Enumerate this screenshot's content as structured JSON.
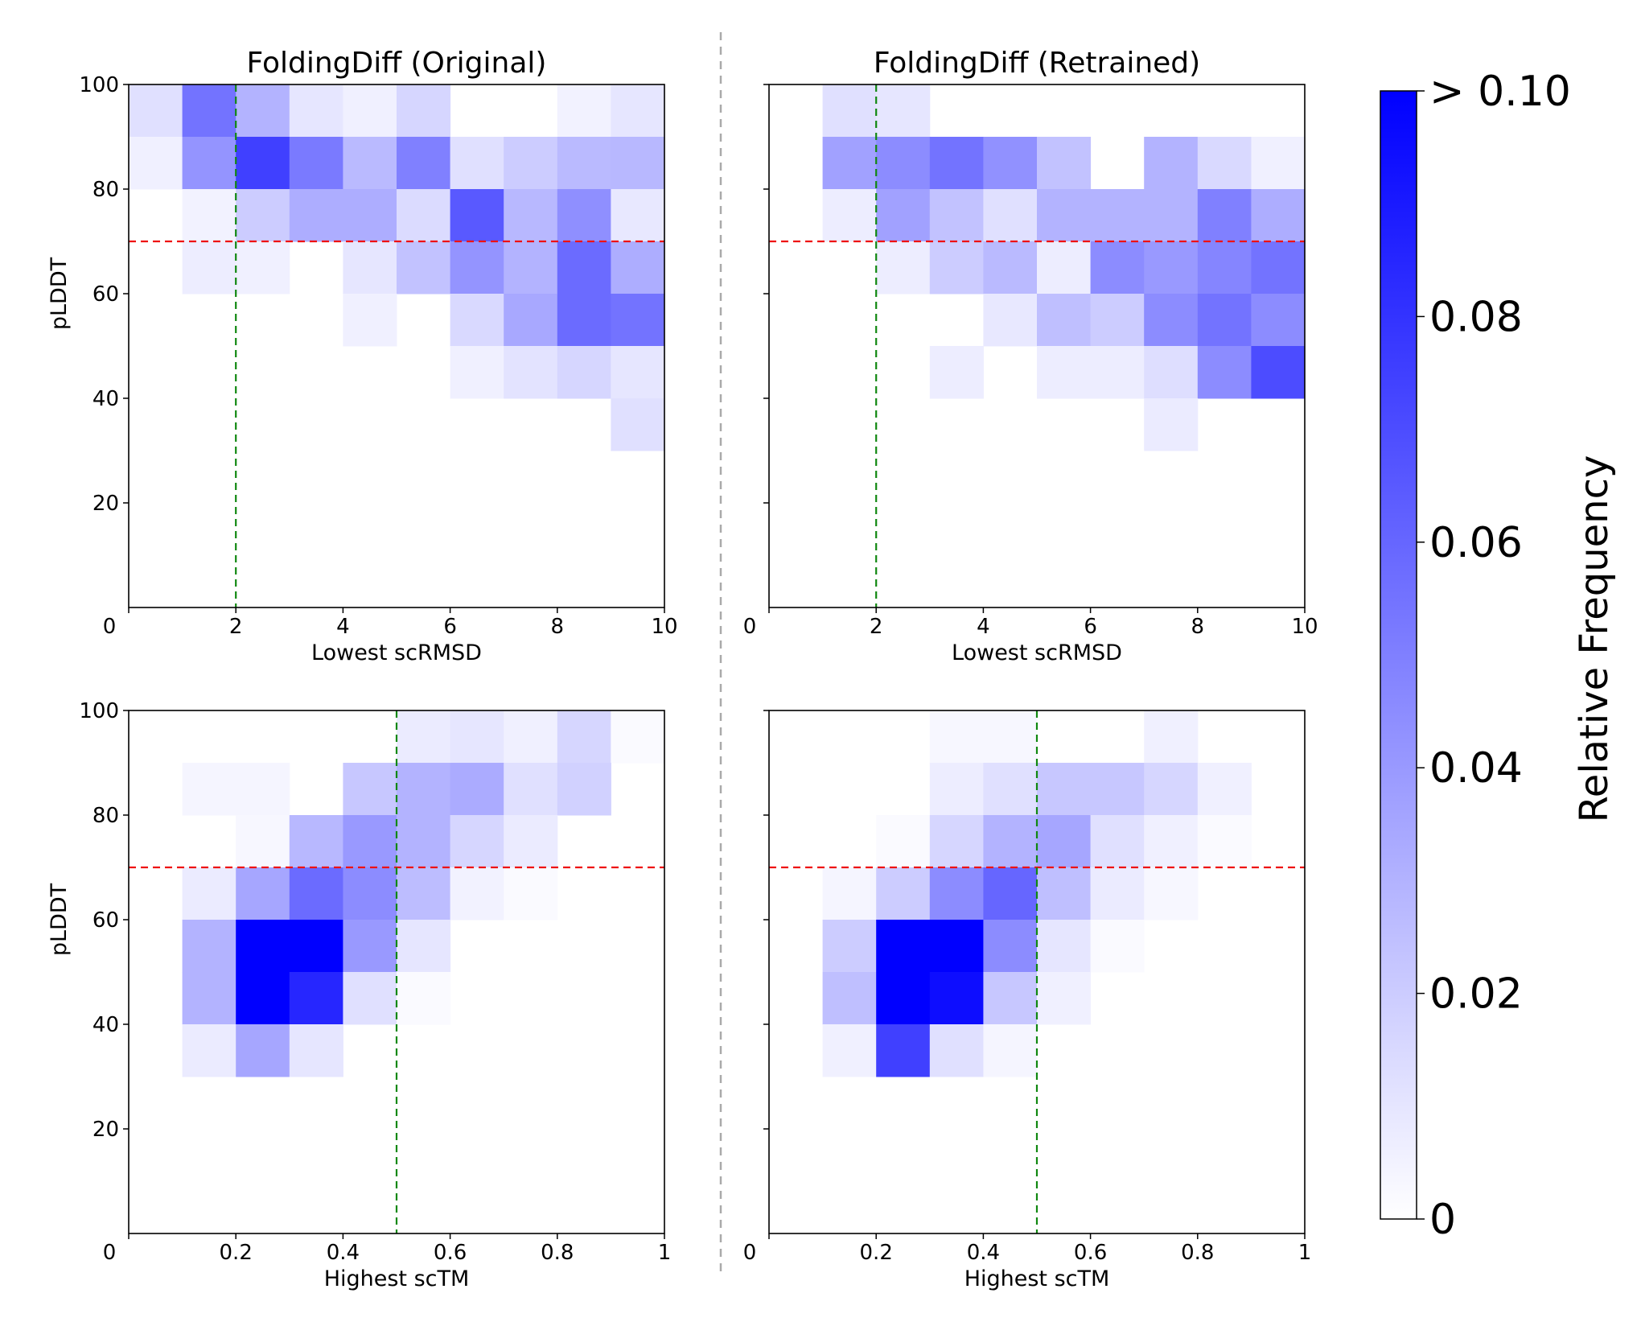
{
  "figure": {
    "divider_color": "#aaaaaa",
    "threshold_h_color": "#ee1111",
    "threshold_v_color": "#118811",
    "cmap_low": "#ffffff",
    "cmap_high": "#0000ff"
  },
  "colorbar": {
    "title": "Relative Frequency",
    "vmin": 0,
    "vmax": 0.1,
    "ticks": [
      0,
      0.02,
      0.04,
      0.06,
      0.08,
      0.1
    ],
    "tick_labels": [
      "0",
      "0.02",
      "0.04",
      "0.06",
      "0.08",
      "> 0.10"
    ]
  },
  "chart_data": [
    {
      "id": "orig-rmsd",
      "type": "heatmap",
      "title": "FoldingDiff (Original)",
      "xlabel": "Lowest scRMSD",
      "ylabel": "pLDDT",
      "xlim": [
        0,
        10
      ],
      "ylim": [
        0,
        100
      ],
      "x_bin_edges": [
        0,
        1,
        2,
        3,
        4,
        5,
        6,
        7,
        8,
        9,
        10
      ],
      "y_bin_edges": [
        100,
        90,
        80,
        70,
        60,
        50,
        40,
        30,
        20,
        10,
        0
      ],
      "x_ticks": [
        0,
        2,
        4,
        6,
        8,
        10
      ],
      "x_tick_labels": [
        "0",
        "2",
        "4",
        "6",
        "8",
        "10"
      ],
      "y_ticks": [
        20,
        40,
        60,
        80,
        100
      ],
      "y_tick_labels": [
        "20",
        "40",
        "60",
        "80",
        "100"
      ],
      "hline": 70,
      "vline": 2,
      "values": [
        [
          0.012,
          0.055,
          0.03,
          0.01,
          0.006,
          0.016,
          0,
          0,
          0.005,
          0.01
        ],
        [
          0.006,
          0.042,
          0.075,
          0.052,
          0.027,
          0.05,
          0.012,
          0.02,
          0.027,
          0.028
        ],
        [
          0,
          0.005,
          0.02,
          0.032,
          0.032,
          0.014,
          0.065,
          0.028,
          0.044,
          0.009
        ],
        [
          0,
          0.007,
          0.006,
          0,
          0.01,
          0.024,
          0.042,
          0.03,
          0.058,
          0.032
        ],
        [
          0,
          0,
          0,
          0,
          0.006,
          0,
          0.015,
          0.034,
          0.058,
          0.055
        ],
        [
          0,
          0,
          0,
          0,
          0,
          0,
          0.006,
          0.011,
          0.016,
          0.01
        ],
        [
          0,
          0,
          0,
          0,
          0,
          0,
          0,
          0,
          0,
          0.012
        ],
        [
          0,
          0,
          0,
          0,
          0,
          0,
          0,
          0,
          0,
          0
        ],
        [
          0,
          0,
          0,
          0,
          0,
          0,
          0,
          0,
          0,
          0
        ],
        [
          0,
          0,
          0,
          0,
          0,
          0,
          0,
          0,
          0,
          0
        ]
      ]
    },
    {
      "id": "retr-rmsd",
      "type": "heatmap",
      "title": "FoldingDiff (Retrained)",
      "xlabel": "Lowest scRMSD",
      "ylabel": "",
      "xlim": [
        0,
        10
      ],
      "ylim": [
        0,
        100
      ],
      "x_bin_edges": [
        0,
        1,
        2,
        3,
        4,
        5,
        6,
        7,
        8,
        9,
        10
      ],
      "y_bin_edges": [
        100,
        90,
        80,
        70,
        60,
        50,
        40,
        30,
        20,
        10,
        0
      ],
      "x_ticks": [
        0,
        2,
        4,
        6,
        8,
        10
      ],
      "x_tick_labels": [
        "0",
        "2",
        "4",
        "6",
        "8",
        "10"
      ],
      "y_ticks": [
        20,
        40,
        60,
        80,
        100
      ],
      "y_tick_labels": [
        "",
        "",
        "",
        "",
        ""
      ],
      "hline": 70,
      "vline": 2,
      "values": [
        [
          0,
          0.012,
          0.01,
          0,
          0,
          0,
          0,
          0,
          0,
          0
        ],
        [
          0,
          0.037,
          0.045,
          0.055,
          0.043,
          0.024,
          0,
          0.03,
          0.015,
          0.006
        ],
        [
          0,
          0.007,
          0.037,
          0.024,
          0.012,
          0.03,
          0.03,
          0.03,
          0.05,
          0.032
        ],
        [
          0,
          0,
          0.007,
          0.02,
          0.027,
          0.007,
          0.045,
          0.04,
          0.048,
          0.055
        ],
        [
          0,
          0,
          0,
          0,
          0.009,
          0.025,
          0.02,
          0.045,
          0.055,
          0.045
        ],
        [
          0,
          0,
          0,
          0.007,
          0,
          0.007,
          0.007,
          0.013,
          0.045,
          0.07
        ],
        [
          0,
          0,
          0,
          0,
          0,
          0,
          0,
          0.008,
          0,
          0
        ],
        [
          0,
          0,
          0,
          0,
          0,
          0,
          0,
          0,
          0,
          0
        ],
        [
          0,
          0,
          0,
          0,
          0,
          0,
          0,
          0,
          0,
          0
        ],
        [
          0,
          0,
          0,
          0,
          0,
          0,
          0,
          0,
          0,
          0
        ]
      ]
    },
    {
      "id": "orig-tm",
      "type": "heatmap",
      "title": "",
      "xlabel": "Highest scTM",
      "ylabel": "pLDDT",
      "xlim": [
        0,
        1
      ],
      "ylim": [
        0,
        100
      ],
      "x_bin_edges": [
        0,
        0.1,
        0.2,
        0.3,
        0.4,
        0.5,
        0.6,
        0.7,
        0.8,
        0.9,
        1
      ],
      "y_bin_edges": [
        100,
        90,
        80,
        70,
        60,
        50,
        40,
        30,
        20,
        10,
        0
      ],
      "x_ticks": [
        0,
        0.2,
        0.4,
        0.6,
        0.8,
        1
      ],
      "x_tick_labels": [
        "0",
        "0.2",
        "0.4",
        "0.6",
        "0.8",
        "1"
      ],
      "y_ticks": [
        20,
        40,
        60,
        80,
        100
      ],
      "y_tick_labels": [
        "20",
        "40",
        "60",
        "80",
        "100"
      ],
      "hline": 70,
      "vline": 0.5,
      "values": [
        [
          0,
          0,
          0,
          0,
          0,
          0.008,
          0.01,
          0.006,
          0.016,
          0.002
        ],
        [
          0,
          0.004,
          0.004,
          0,
          0.022,
          0.03,
          0.033,
          0.012,
          0.018,
          0
        ],
        [
          0,
          0,
          0.003,
          0.028,
          0.04,
          0.03,
          0.016,
          0.008,
          0,
          0
        ],
        [
          0,
          0.008,
          0.035,
          0.058,
          0.045,
          0.026,
          0.005,
          0.002,
          0,
          0
        ],
        [
          0,
          0.03,
          0.1,
          0.1,
          0.04,
          0.01,
          0,
          0,
          0,
          0
        ],
        [
          0,
          0.03,
          0.1,
          0.085,
          0.012,
          0.002,
          0,
          0,
          0,
          0
        ],
        [
          0,
          0.008,
          0.035,
          0.01,
          0,
          0,
          0,
          0,
          0,
          0
        ],
        [
          0,
          0,
          0,
          0,
          0,
          0,
          0,
          0,
          0,
          0
        ],
        [
          0,
          0,
          0,
          0,
          0,
          0,
          0,
          0,
          0,
          0
        ],
        [
          0,
          0,
          0,
          0,
          0,
          0,
          0,
          0,
          0,
          0
        ]
      ]
    },
    {
      "id": "retr-tm",
      "type": "heatmap",
      "title": "",
      "xlabel": "Highest scTM",
      "ylabel": "",
      "xlim": [
        0,
        1
      ],
      "ylim": [
        0,
        100
      ],
      "x_bin_edges": [
        0,
        0.1,
        0.2,
        0.3,
        0.4,
        0.5,
        0.6,
        0.7,
        0.8,
        0.9,
        1
      ],
      "y_bin_edges": [
        100,
        90,
        80,
        70,
        60,
        50,
        40,
        30,
        20,
        10,
        0
      ],
      "x_ticks": [
        0,
        0.2,
        0.4,
        0.6,
        0.8,
        1
      ],
      "x_tick_labels": [
        "0",
        "0.2",
        "0.4",
        "0.6",
        "0.8",
        "1"
      ],
      "y_ticks": [
        20,
        40,
        60,
        80,
        100
      ],
      "y_tick_labels": [
        "",
        "",
        "",
        "",
        ""
      ],
      "hline": 70,
      "vline": 0.5,
      "values": [
        [
          0,
          0,
          0,
          0.003,
          0.003,
          0,
          0,
          0.006,
          0,
          0
        ],
        [
          0,
          0,
          0,
          0.007,
          0.012,
          0.022,
          0.022,
          0.016,
          0.006,
          0
        ],
        [
          0,
          0,
          0.002,
          0.016,
          0.03,
          0.035,
          0.012,
          0.006,
          0.002,
          0
        ],
        [
          0,
          0.004,
          0.02,
          0.045,
          0.06,
          0.025,
          0.008,
          0.003,
          0,
          0
        ],
        [
          0,
          0.02,
          0.1,
          0.1,
          0.045,
          0.01,
          0.002,
          0,
          0,
          0
        ],
        [
          0,
          0.025,
          0.1,
          0.095,
          0.022,
          0.006,
          0,
          0,
          0,
          0
        ],
        [
          0,
          0.006,
          0.075,
          0.012,
          0.004,
          0,
          0,
          0,
          0,
          0
        ],
        [
          0,
          0,
          0,
          0,
          0,
          0,
          0,
          0,
          0,
          0
        ],
        [
          0,
          0,
          0,
          0,
          0,
          0,
          0,
          0,
          0,
          0
        ],
        [
          0,
          0,
          0,
          0,
          0,
          0,
          0,
          0,
          0,
          0
        ]
      ]
    }
  ]
}
